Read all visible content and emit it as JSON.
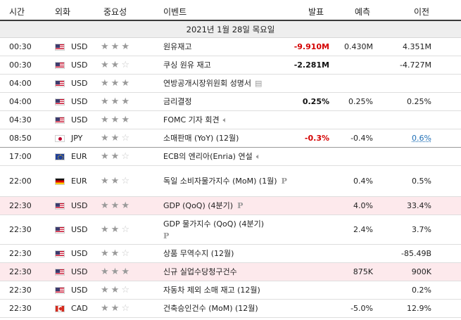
{
  "header": {
    "time": "시간",
    "currency": "외화",
    "importance": "중요성",
    "event": "이벤트",
    "actual": "발표",
    "forecast": "예측",
    "previous": "이전"
  },
  "date_label": "2021년 1월 28일 목요일",
  "icons": {
    "speaker": "speaker-icon",
    "document": "document-icon",
    "preliminary": "preliminary-badge-icon"
  },
  "rows": [
    {
      "time": "00:30",
      "currency": "USD",
      "stars": 3,
      "event": "원유재고",
      "actual": "-9.910M",
      "actual_color": "red",
      "forecast": "0.430M",
      "previous": "4.351M"
    },
    {
      "time": "00:30",
      "currency": "USD",
      "stars": 2,
      "event": "쿠싱 원유 재고",
      "actual": "-2.281M",
      "actual_color": "black",
      "forecast": "",
      "previous": "-4.727M"
    },
    {
      "time": "04:00",
      "currency": "USD",
      "stars": 3,
      "event": "연방공개시장위원회 성명서",
      "actual": "",
      "forecast": "",
      "previous": ""
    },
    {
      "time": "04:00",
      "currency": "USD",
      "stars": 3,
      "event": "금리결정",
      "actual": "0.25%",
      "actual_color": "black",
      "forecast": "0.25%",
      "previous": "0.25%"
    },
    {
      "time": "04:30",
      "currency": "USD",
      "stars": 3,
      "event": "FOMC 기자 회견",
      "actual": "",
      "forecast": "",
      "previous": ""
    },
    {
      "time": "08:50",
      "currency": "JPY",
      "stars": 2,
      "event": "소매판매 (YoY) (12월)",
      "actual": "-0.3%",
      "actual_color": "red",
      "forecast": "-0.4%",
      "previous": "0.6%"
    },
    {
      "time": "17:00",
      "currency": "EUR",
      "stars": 2,
      "event": "ECB의 엔리아(Enria) 연설",
      "actual": "",
      "forecast": "",
      "previous": ""
    },
    {
      "time": "22:00",
      "currency": "EUR",
      "stars": 2,
      "event": "독일 소비자물가지수 (MoM) (1월)",
      "actual": "",
      "forecast": "0.4%",
      "previous": "0.5%"
    },
    {
      "time": "22:30",
      "currency": "USD",
      "stars": 3,
      "event": "GDP (QoQ) (4분기)",
      "actual": "",
      "forecast": "4.0%",
      "previous": "33.4%"
    },
    {
      "time": "22:30",
      "currency": "USD",
      "stars": 2,
      "event": "GDP 물가지수 (QoQ) (4분기)",
      "actual": "",
      "forecast": "2.4%",
      "previous": "3.7%"
    },
    {
      "time": "22:30",
      "currency": "USD",
      "stars": 2,
      "event": "상품 무역수지 (12월)",
      "actual": "",
      "forecast": "",
      "previous": "-85.49B"
    },
    {
      "time": "22:30",
      "currency": "USD",
      "stars": 3,
      "event": "신규 실업수당청구건수",
      "actual": "",
      "forecast": "875K",
      "previous": "900K"
    },
    {
      "time": "22:30",
      "currency": "USD",
      "stars": 2,
      "event": "자동차 제외 소매 재고 (12월)",
      "actual": "",
      "forecast": "",
      "previous": "0.2%"
    },
    {
      "time": "22:30",
      "currency": "CAD",
      "stars": 2,
      "event": "건축승인건수 (MoM) (12월)",
      "actual": "",
      "forecast": "-5.0%",
      "previous": "12.9%"
    }
  ]
}
